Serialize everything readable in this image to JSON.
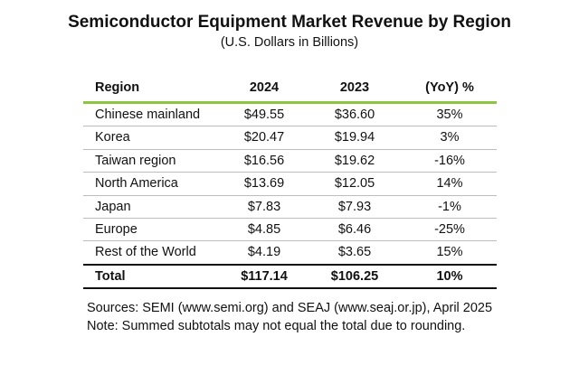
{
  "title": "Semiconductor Equipment Market Revenue by Region",
  "subtitle": "(U.S. Dollars in Billions)",
  "colors": {
    "header_rule": "#8cc63f",
    "row_rule": "#bdbdbd",
    "total_rule": "#111111"
  },
  "chart_data": {
    "type": "table",
    "columns": [
      "Region",
      "2024",
      "2023",
      "(YoY) %"
    ],
    "rows": [
      [
        "Chinese mainland",
        "$49.55",
        "$36.60",
        "35%"
      ],
      [
        "Korea",
        "$20.47",
        "$19.94",
        "3%"
      ],
      [
        "Taiwan region",
        "$16.56",
        "$19.62",
        "-16%"
      ],
      [
        "North America",
        "$13.69",
        "$12.05",
        "14%"
      ],
      [
        "Japan",
        "$7.83",
        "$7.93",
        "-1%"
      ],
      [
        "Europe",
        "$4.85",
        "$6.46",
        "-25%"
      ],
      [
        "Rest of the World",
        "$4.19",
        "$3.65",
        "15%"
      ]
    ],
    "total": [
      "Total",
      "$117.14",
      "$106.25",
      "10%"
    ]
  },
  "notes": {
    "sources": "Sources: SEMI (www.semi.org) and SEAJ (www.seaj.or.jp), April 2025",
    "note": "Note: Summed subtotals may not equal the total due to rounding."
  }
}
